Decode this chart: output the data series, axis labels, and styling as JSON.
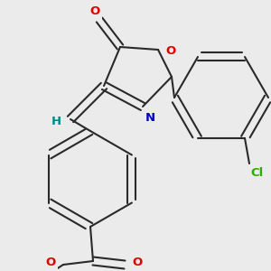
{
  "bg_color": "#ebebeb",
  "bond_color": "#2a2a2a",
  "bond_lw": 1.5,
  "dbo": 0.018,
  "atom_colors": {
    "O": "#dd0000",
    "N": "#0000cc",
    "Cl": "#33aa00",
    "H": "#008888"
  },
  "fs": 9.5,
  "fig_w": 3.0,
  "fig_h": 3.0,
  "dpi": 100,
  "xlim": [
    0,
    300
  ],
  "ylim": [
    0,
    300
  ]
}
